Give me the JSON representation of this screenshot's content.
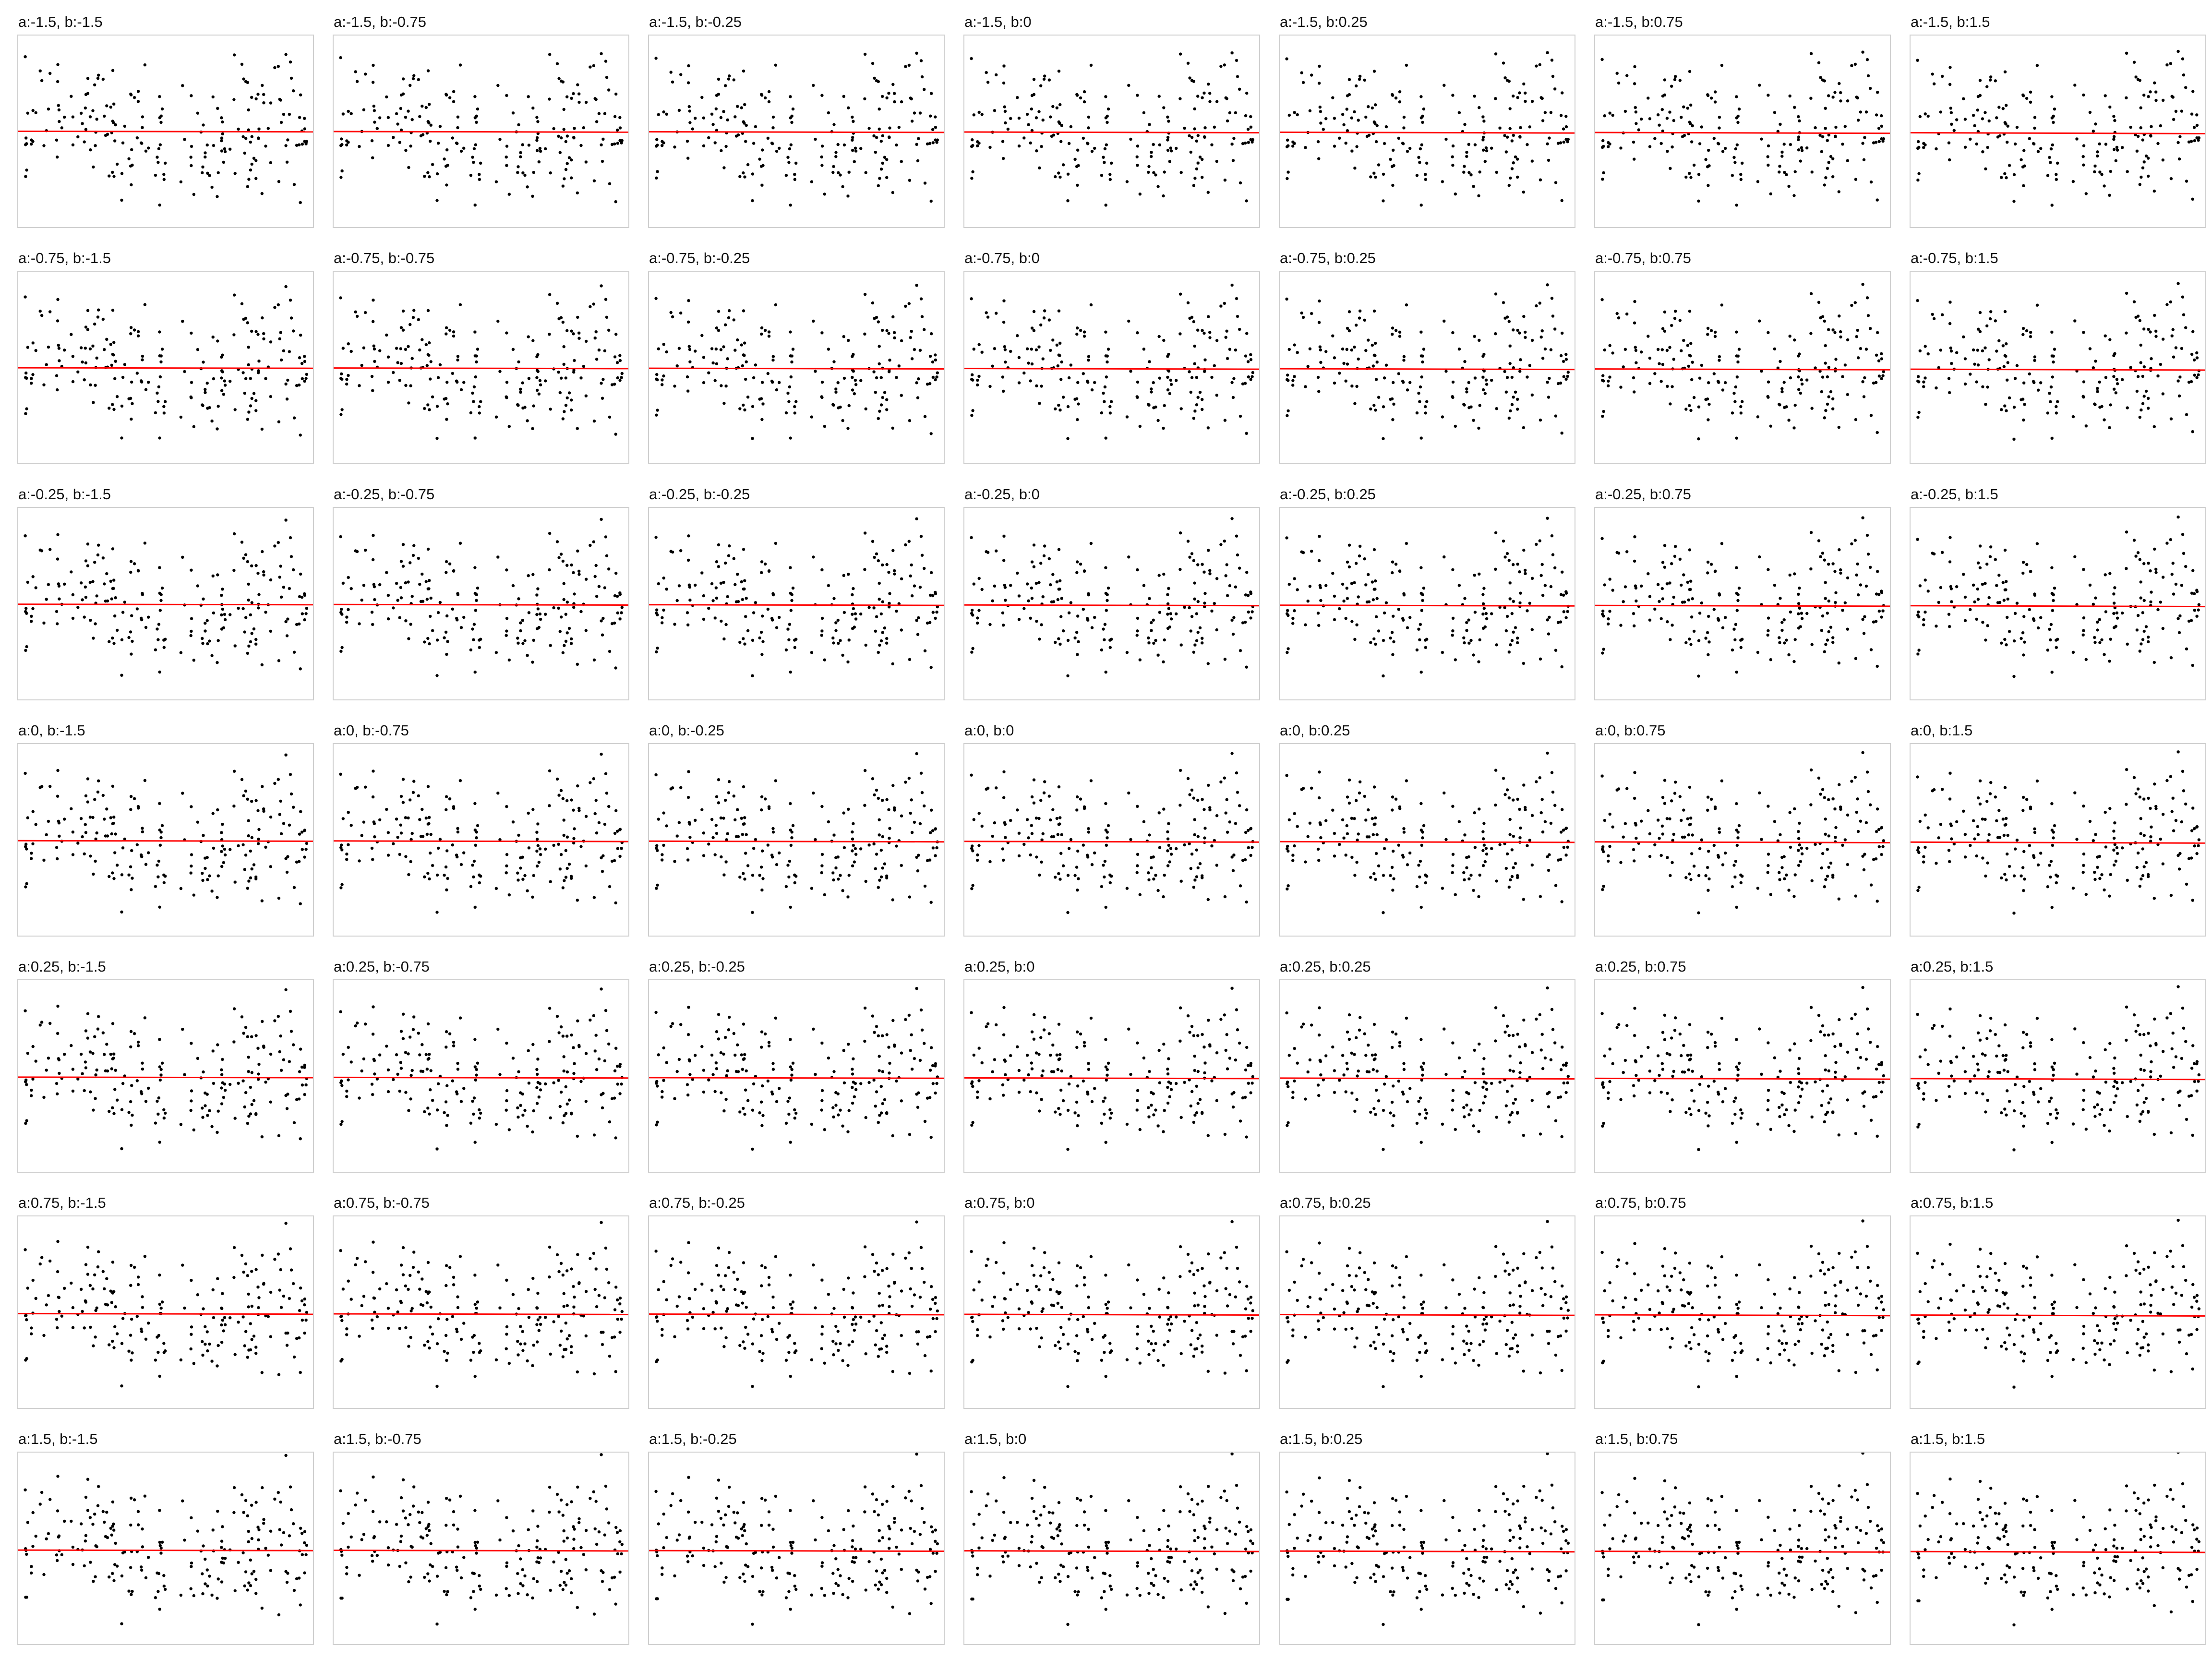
{
  "chart_data": {
    "type": "scatter",
    "layout": "small multiples, 7 rows x 7 columns",
    "row_param": "a",
    "col_param": "b",
    "a_values": [
      -1.5,
      -0.75,
      -0.25,
      0,
      0.25,
      0.75,
      1.5
    ],
    "b_values": [
      -1.5,
      -0.75,
      -0.25,
      0,
      0.25,
      0.75,
      1.5
    ],
    "panel_titles": [
      [
        "a:-1.5, b:-1.5",
        "a:-1.5, b:-0.75",
        "a:-1.5, b:-0.25",
        "a:-1.5, b:0",
        "a:-1.5, b:0.25",
        "a:-1.5, b:0.75",
        "a:-1.5, b:1.5"
      ],
      [
        "a:-0.75, b:-1.5",
        "a:-0.75, b:-0.75",
        "a:-0.75, b:-0.25",
        "a:-0.75, b:0",
        "a:-0.75, b:0.25",
        "a:-0.75, b:0.75",
        "a:-0.75, b:1.5"
      ],
      [
        "a:-0.25, b:-1.5",
        "a:-0.25, b:-0.75",
        "a:-0.25, b:-0.25",
        "a:-0.25, b:0",
        "a:-0.25, b:0.25",
        "a:-0.25, b:0.75",
        "a:-0.25, b:1.5"
      ],
      [
        "a:0, b:-1.5",
        "a:0, b:-0.75",
        "a:0, b:-0.25",
        "a:0, b:0",
        "a:0, b:0.25",
        "a:0, b:0.75",
        "a:0, b:1.5"
      ],
      [
        "a:0.25, b:-1.5",
        "a:0.25, b:-0.75",
        "a:0.25, b:-0.25",
        "a:0.25, b:0",
        "a:0.25, b:0.25",
        "a:0.25, b:0.75",
        "a:0.25, b:1.5"
      ],
      [
        "a:0.75, b:-1.5",
        "a:0.75, b:-0.75",
        "a:0.75, b:-0.25",
        "a:0.75, b:0",
        "a:0.75, b:0.25",
        "a:0.75, b:0.75",
        "a:0.75, b:1.5"
      ],
      [
        "a:1.5, b:-1.5",
        "a:1.5, b:-0.75",
        "a:1.5, b:-0.25",
        "a:1.5, b:0",
        "a:1.5, b:0.25",
        "a:1.5, b:0.75",
        "a:1.5, b:1.5"
      ]
    ],
    "points_per_panel": 200,
    "xlim": [
      0,
      1
    ],
    "ylim": [
      -3,
      3
    ],
    "reference_line_y": 0,
    "axes_shown": false,
    "grid": false,
    "legend": "none",
    "point_color": "#000000",
    "reference_line_color": "#ff0000",
    "panel_border_color": "#cfcfcf"
  }
}
